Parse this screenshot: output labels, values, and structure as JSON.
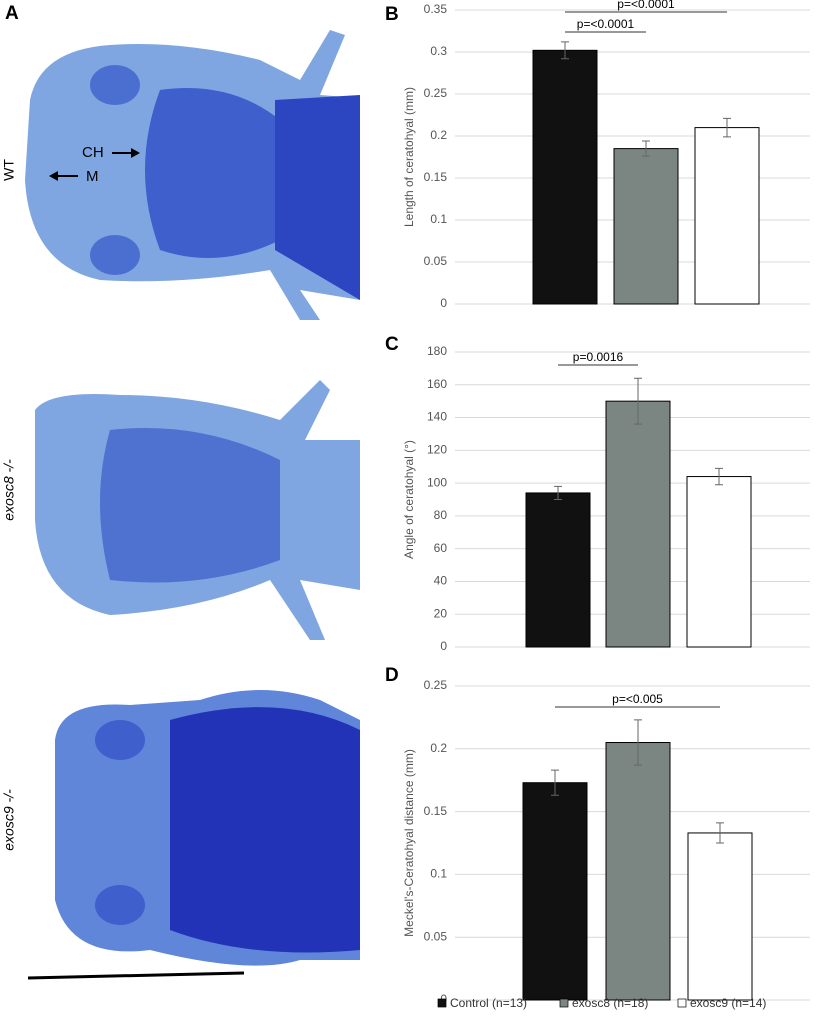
{
  "panel_a": {
    "panel": "A",
    "rows": [
      "WT",
      "exosc8 -/-",
      "exosc9 -/-"
    ],
    "arrows": [
      "CH",
      "M"
    ]
  },
  "legend": [
    {
      "name": "Control (n=13)",
      "color": "#111111"
    },
    {
      "name": "exosc8 (n=18)",
      "color": "#7b8683"
    },
    {
      "name": "exosc9 (n=14)",
      "color": "#ffffff"
    }
  ],
  "chart_data": [
    {
      "type": "bar",
      "panel": "B",
      "ylabel": "Length of ceratohyal (mm)",
      "categories": [
        null,
        null,
        null
      ],
      "values": [
        0.302,
        0.185,
        0.21
      ],
      "errors": [
        0.01,
        0.009,
        0.011
      ],
      "ylim": [
        0,
        0.35
      ],
      "yticks": [
        0,
        0.05,
        0.1,
        0.15,
        0.2,
        0.25,
        0.3,
        0.35
      ],
      "grid": true,
      "annotations": [
        {
          "text": "p=<0.0001",
          "from": 0,
          "to": 2
        },
        {
          "text": "p=<0.0001",
          "from": 0,
          "to": 1
        }
      ]
    },
    {
      "type": "bar",
      "panel": "C",
      "ylabel": "Angle of ceratohyal (°)",
      "categories": [
        null,
        null,
        null
      ],
      "values": [
        94,
        150,
        104
      ],
      "errors": [
        4,
        14,
        5
      ],
      "ylim": [
        0,
        180
      ],
      "yticks": [
        0,
        20,
        40,
        60,
        80,
        100,
        120,
        140,
        160,
        180
      ],
      "grid": true,
      "annotations": [
        {
          "text": "p=0.0016",
          "from": 0,
          "to": 1
        }
      ]
    },
    {
      "type": "bar",
      "panel": "D",
      "ylabel": "Meckel's-Ceratohyal distance (mm)",
      "categories": [
        null,
        null,
        null
      ],
      "values": [
        0.173,
        0.205,
        0.133
      ],
      "errors": [
        0.01,
        0.018,
        0.008
      ],
      "ylim": [
        0,
        0.25
      ],
      "yticks": [
        0,
        0.05,
        0.1,
        0.15,
        0.2,
        0.25
      ],
      "grid": true,
      "annotations": [
        {
          "text": "p=<0.005",
          "from": 0,
          "to": 2
        }
      ]
    }
  ]
}
